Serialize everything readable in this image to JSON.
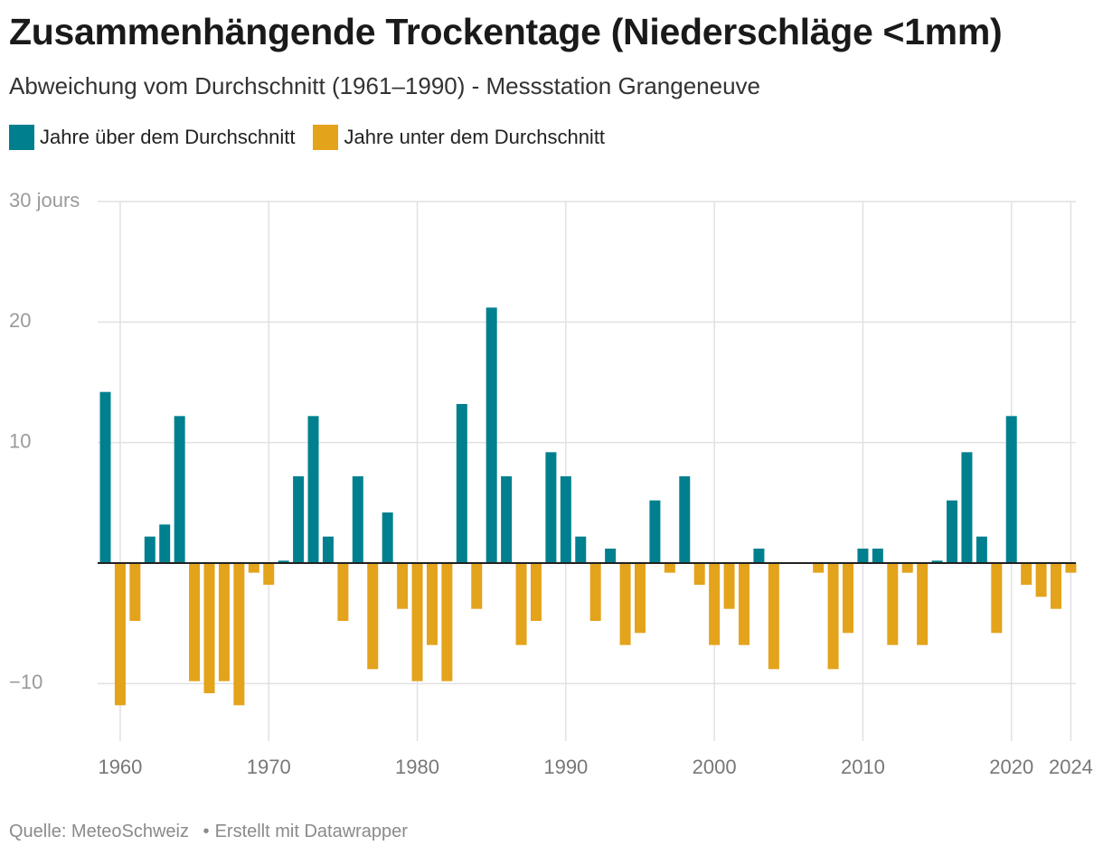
{
  "chart_data": {
    "type": "bar",
    "title": "Zusammenhängende Trockentage (Niederschläge <1mm)",
    "subtitle": "Abweichung vom Durchschnitt (1961–1990) - Messstation Grangeneuve",
    "legend": [
      {
        "label": "Jahre über dem Durchschnitt",
        "color": "#00808f"
      },
      {
        "label": "Jahre unter dem Durchschnitt",
        "color": "#e3a31b"
      }
    ],
    "y_ticks": [
      {
        "value": 30,
        "label": "30 jours"
      },
      {
        "value": 20,
        "label": "20"
      },
      {
        "value": 10,
        "label": "10"
      },
      {
        "value": -10,
        "label": "−10"
      }
    ],
    "x_ticks": [
      {
        "value": 1960,
        "label": "1960"
      },
      {
        "value": 1970,
        "label": "1970"
      },
      {
        "value": 1980,
        "label": "1980"
      },
      {
        "value": 1990,
        "label": "1990"
      },
      {
        "value": 2000,
        "label": "2000"
      },
      {
        "value": 2010,
        "label": "2010"
      },
      {
        "value": 2020,
        "label": "2020"
      },
      {
        "value": 2024,
        "label": "2024"
      }
    ],
    "ylim": [
      -15,
      30
    ],
    "xlim": [
      1958.75,
      2024.35
    ],
    "x": [
      1959,
      1960,
      1961,
      1962,
      1963,
      1964,
      1965,
      1966,
      1967,
      1968,
      1969,
      1970,
      1971,
      1972,
      1973,
      1974,
      1975,
      1976,
      1977,
      1978,
      1979,
      1980,
      1981,
      1982,
      1983,
      1984,
      1985,
      1986,
      1987,
      1988,
      1989,
      1990,
      1991,
      1992,
      1993,
      1994,
      1995,
      1996,
      1997,
      1998,
      1999,
      2000,
      2001,
      2002,
      2003,
      2004,
      2005,
      2006,
      2007,
      2008,
      2009,
      2010,
      2011,
      2012,
      2013,
      2014,
      2015,
      2016,
      2017,
      2018,
      2019,
      2020,
      2021,
      2022,
      2023,
      2024
    ],
    "values": [
      14.2,
      -11.8,
      -4.8,
      2.2,
      3.2,
      12.2,
      -9.8,
      -10.8,
      -9.8,
      -11.8,
      -0.8,
      -1.8,
      0.2,
      7.2,
      12.2,
      2.2,
      -4.8,
      7.2,
      -8.8,
      4.2,
      -3.8,
      -9.8,
      -6.8,
      -9.8,
      13.2,
      -3.8,
      21.2,
      7.2,
      -6.8,
      -4.8,
      9.2,
      7.2,
      2.2,
      -4.8,
      1.2,
      -6.8,
      -5.8,
      5.2,
      -0.8,
      7.2,
      -1.8,
      -6.8,
      -3.8,
      -6.8,
      1.2,
      -8.8,
      0,
      0,
      -0.8,
      -8.8,
      -5.8,
      1.2,
      1.2,
      -6.8,
      -0.8,
      -6.8,
      0.2,
      5.2,
      9.2,
      2.2,
      -5.8,
      12.2,
      -1.8,
      -2.8,
      -3.8,
      -0.8
    ]
  },
  "footer": {
    "source": "Quelle: MeteoSchweiz",
    "separator": "•",
    "credit": "Erstellt mit Datawrapper"
  }
}
